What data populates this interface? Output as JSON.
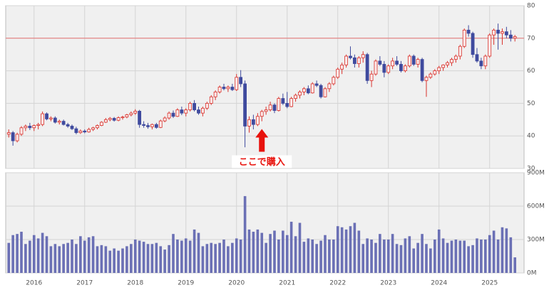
{
  "chart_data": {
    "type": "candlestick",
    "x": [
      2015.5,
      2015.583,
      2015.667,
      2015.75,
      2015.833,
      2015.917,
      2016,
      2016.083,
      2016.167,
      2016.25,
      2016.333,
      2016.417,
      2016.5,
      2016.583,
      2016.667,
      2016.75,
      2016.833,
      2016.917,
      2017,
      2017.083,
      2017.167,
      2017.25,
      2017.333,
      2017.417,
      2017.5,
      2017.583,
      2017.667,
      2017.75,
      2017.833,
      2017.917,
      2018,
      2018.083,
      2018.167,
      2018.25,
      2018.333,
      2018.417,
      2018.5,
      2018.583,
      2018.667,
      2018.75,
      2018.833,
      2018.917,
      2019,
      2019.083,
      2019.167,
      2019.25,
      2019.333,
      2019.417,
      2019.5,
      2019.583,
      2019.667,
      2019.75,
      2019.833,
      2019.917,
      2020,
      2020.083,
      2020.167,
      2020.25,
      2020.333,
      2020.417,
      2020.5,
      2020.583,
      2020.667,
      2020.75,
      2020.833,
      2020.917,
      2021,
      2021.083,
      2021.167,
      2021.25,
      2021.333,
      2021.417,
      2021.5,
      2021.583,
      2021.667,
      2021.75,
      2021.833,
      2021.917,
      2022,
      2022.083,
      2022.167,
      2022.25,
      2022.333,
      2022.417,
      2022.5,
      2022.583,
      2022.667,
      2022.75,
      2022.833,
      2022.917,
      2023,
      2023.083,
      2023.167,
      2023.25,
      2023.333,
      2023.417,
      2023.5,
      2023.583,
      2023.667,
      2023.75,
      2023.833,
      2023.917,
      2024,
      2024.083,
      2024.167,
      2024.25,
      2024.333,
      2024.417,
      2024.5,
      2024.583,
      2024.667,
      2024.75,
      2024.833,
      2024.917,
      2025,
      2025.083,
      2025.167,
      2025.25,
      2025.333,
      2025.417,
      2025.5
    ],
    "open": [
      40.5,
      41,
      38.5,
      40.5,
      42.5,
      43,
      42.5,
      43.2,
      43.5,
      46.8,
      45.2,
      45.5,
      44.2,
      44.5,
      43.5,
      43,
      42.2,
      41,
      41.5,
      41.2,
      42,
      42.5,
      43.2,
      44.2,
      45,
      45.4,
      44.8,
      45.6,
      45.8,
      46.5,
      47,
      47.6,
      43.5,
      43.2,
      42.8,
      43.5,
      42.6,
      44.6,
      45.5,
      47,
      46,
      48,
      47,
      48,
      50,
      48,
      47,
      48.5,
      50,
      52,
      53.5,
      55,
      54.5,
      55,
      54.2,
      58,
      56,
      43,
      45,
      43.5,
      46,
      47.5,
      48,
      49.5,
      47.8,
      51.5,
      50,
      49,
      51.5,
      52.5,
      53.5,
      54.5,
      53.2,
      56,
      55.5,
      52,
      54.5,
      56,
      58,
      60.5,
      61.8,
      64.5,
      64,
      62.2,
      64,
      65,
      57,
      59,
      63,
      62,
      59.5,
      61.5,
      63,
      62,
      60,
      61.5,
      64.5,
      62,
      63.5,
      57,
      58,
      59,
      60,
      61,
      61.8,
      62.5,
      63.5,
      64.5,
      67.5,
      72.5,
      71.5,
      65,
      63,
      61.5,
      64.5,
      71,
      72.5,
      71.5,
      72,
      71,
      70
    ],
    "high": [
      42,
      41.5,
      41,
      43,
      43.5,
      44,
      43.5,
      44,
      47.5,
      47.2,
      46,
      46,
      45,
      45,
      44,
      43.5,
      42.8,
      42,
      42,
      42.5,
      42.8,
      43.5,
      44.5,
      45.5,
      45.8,
      45.8,
      46,
      46.2,
      46.8,
      47.5,
      48.2,
      48,
      44.5,
      44,
      43.8,
      44,
      45,
      46,
      47.5,
      47.8,
      48.5,
      49,
      48.5,
      50.5,
      51,
      49,
      49,
      50.5,
      52.5,
      54,
      55.5,
      56,
      55.5,
      56,
      59,
      60.2,
      57,
      46,
      46.5,
      47,
      48,
      49,
      50.5,
      50,
      52,
      53,
      53.5,
      52,
      53,
      54,
      55,
      55.5,
      56.5,
      57,
      56,
      55,
      56.5,
      58.5,
      61,
      62.5,
      65,
      67.5,
      65,
      64.5,
      66,
      65.5,
      60,
      63.5,
      64.5,
      63,
      62,
      64,
      64.5,
      63,
      62,
      65,
      65,
      64,
      64,
      58.5,
      59.5,
      60.5,
      61.5,
      62,
      63,
      64,
      65,
      68,
      73,
      74,
      72,
      67,
      64,
      65,
      71.5,
      73,
      74.5,
      73,
      73.5,
      72.5,
      71
    ],
    "low": [
      39.5,
      37,
      38,
      40,
      41.5,
      41.8,
      41.5,
      42,
      43,
      44.8,
      44.5,
      43.8,
      43.5,
      43.2,
      42.5,
      41.8,
      40.5,
      40.6,
      40.8,
      41,
      41.5,
      42,
      43,
      44,
      44.5,
      44.4,
      44.5,
      45,
      45.4,
      46,
      46.5,
      42.5,
      42.5,
      42.2,
      42,
      42.2,
      42.4,
      44.2,
      45,
      45.5,
      45.8,
      46.4,
      46,
      47.5,
      47.5,
      46.5,
      46,
      48,
      49.5,
      51,
      53,
      54,
      53.5,
      53.8,
      53.8,
      55,
      36.5,
      41,
      42,
      43,
      44.5,
      46.5,
      47.5,
      47,
      47.5,
      49.5,
      48.5,
      48.8,
      50.5,
      51.5,
      52.5,
      52.8,
      53,
      55,
      51.5,
      51.8,
      53.5,
      55.5,
      57.5,
      59,
      61,
      63.5,
      61,
      61,
      62.5,
      56,
      55,
      58.5,
      61.5,
      58,
      59,
      60.5,
      61.5,
      59.5,
      59.5,
      61,
      61.5,
      61,
      56.5,
      52,
      57.5,
      58.5,
      59,
      60,
      61,
      61.5,
      62.5,
      63.5,
      67,
      70.5,
      64,
      62.5,
      60.5,
      60.5,
      64,
      68,
      66.5,
      68,
      70,
      69,
      69
    ],
    "close": [
      41,
      38.5,
      40.5,
      42.5,
      43,
      42.5,
      43.2,
      43.5,
      46.8,
      45.2,
      45.5,
      44.2,
      44.5,
      43.5,
      43,
      42.2,
      41,
      41.5,
      41.2,
      42,
      42.5,
      43.2,
      44.2,
      45,
      45.4,
      44.8,
      45.6,
      45.8,
      46.5,
      47,
      47.6,
      43.5,
      43.2,
      42.8,
      43.5,
      42.6,
      44.6,
      45.5,
      47,
      46,
      48,
      47,
      48,
      50,
      48,
      47,
      48.5,
      50,
      52,
      53.5,
      55,
      54.5,
      55,
      54.2,
      58,
      56,
      43,
      45,
      43.5,
      46,
      47.5,
      48,
      49.5,
      47.8,
      51.5,
      50,
      49,
      51.5,
      52.5,
      53.5,
      54.5,
      53.2,
      56,
      55.5,
      52,
      54.5,
      56,
      58,
      60.5,
      61.8,
      64.5,
      64,
      62.2,
      64,
      65,
      57,
      59,
      63,
      62,
      59.5,
      61.5,
      63,
      62,
      60,
      61.5,
      64.5,
      62,
      63.5,
      57,
      58,
      59,
      60,
      61,
      61.8,
      62.5,
      63.5,
      64.5,
      67.5,
      72.5,
      71.5,
      65,
      63,
      61.5,
      64.5,
      71,
      72.5,
      71.5,
      72,
      71,
      70,
      70.5
    ],
    "up_color": "#d9312b",
    "down_color": "#3f4a9e",
    "xlim": [
      2015.44,
      2025.68
    ],
    "xticks": [
      2016,
      2017,
      2018,
      2019,
      2020,
      2021,
      2022,
      2023,
      2024,
      2025
    ],
    "ylim": [
      30,
      80
    ],
    "yticks": [
      30,
      40,
      50,
      60,
      70,
      80
    ],
    "grid": true,
    "reference_line": {
      "value": 70,
      "color": "#e57373"
    },
    "annotation": {
      "text": "ここで購入",
      "x": 2020.5,
      "y": 43,
      "color": "#e8120c"
    },
    "volume": {
      "values": [
        270,
        340,
        350,
        370,
        260,
        290,
        340,
        310,
        360,
        330,
        240,
        260,
        240,
        260,
        270,
        300,
        260,
        330,
        290,
        320,
        330,
        240,
        250,
        240,
        200,
        220,
        200,
        220,
        240,
        260,
        300,
        290,
        280,
        260,
        260,
        270,
        240,
        210,
        250,
        350,
        300,
        290,
        310,
        290,
        390,
        360,
        240,
        260,
        270,
        260,
        270,
        300,
        240,
        270,
        310,
        300,
        690,
        390,
        370,
        390,
        360,
        270,
        350,
        380,
        300,
        380,
        340,
        460,
        330,
        450,
        280,
        310,
        300,
        260,
        290,
        340,
        300,
        300,
        420,
        410,
        390,
        420,
        450,
        380,
        260,
        310,
        300,
        270,
        350,
        300,
        300,
        350,
        260,
        250,
        310,
        330,
        220,
        270,
        350,
        260,
        220,
        300,
        390,
        310,
        270,
        290,
        300,
        290,
        290,
        240,
        250,
        310,
        300,
        300,
        340,
        380,
        300,
        410,
        400,
        320,
        140
      ],
      "color": "#6b70b5",
      "ylim": [
        0,
        900
      ],
      "yticks": [
        {
          "value": 0,
          "label": "0M"
        },
        {
          "value": 300,
          "label": "300M"
        },
        {
          "value": 600,
          "label": "600M"
        },
        {
          "value": 900,
          "label": "900M"
        }
      ]
    }
  }
}
